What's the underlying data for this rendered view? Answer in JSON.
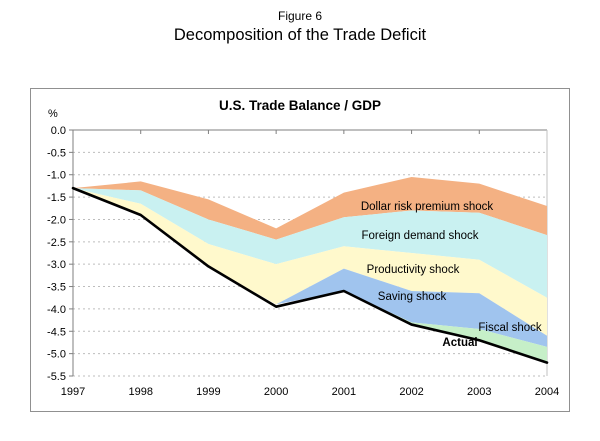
{
  "titles": {
    "figure_number": "Figure 6",
    "main_title": "Decomposition of the Trade Deficit"
  },
  "chart_data": {
    "type": "area",
    "title": "U.S. Trade Balance / GDP",
    "y_unit_label": "%",
    "x": [
      1997,
      1998,
      1999,
      2000,
      2001,
      2002,
      2003,
      2004
    ],
    "x_tick_labels": [
      "1997",
      "1998",
      "1999",
      "2000",
      "2001",
      "2002",
      "2003",
      "2004"
    ],
    "ylim": [
      -5.5,
      0.0
    ],
    "ytick_step": 0.5,
    "grid": "horizontal dashed, hidden behind areas",
    "legend": "labels drawn inside bands",
    "colors": {
      "dollar": "#F4B183",
      "foreign": "#C9F1F1",
      "productivity": "#FFF9CC",
      "saving": "#A0C4EE",
      "fiscal": "#C6EFC8",
      "actual_line": "#000000",
      "gridline": "#BDBDBD",
      "axis": "#7F7F7F",
      "frame": "#C0C0C0",
      "box_border": "#909090"
    },
    "baseline_top_boundary": [
      -1.3,
      -1.15,
      -1.55,
      -2.2,
      -1.4,
      -1.05,
      -1.2,
      -1.7
    ],
    "bands": [
      {
        "name": "Dollar risk premium shock",
        "color_key": "dollar",
        "cumulative": [
          -1.3,
          -1.35,
          -2.0,
          -2.45,
          -1.95,
          -1.8,
          -1.85,
          -2.35
        ]
      },
      {
        "name": "Foreign demand shock",
        "color_key": "foreign",
        "cumulative": [
          -1.3,
          -1.65,
          -2.55,
          -3.0,
          -2.6,
          -2.75,
          -2.9,
          -3.75
        ]
      },
      {
        "name": "Productivity shock",
        "color_key": "productivity",
        "cumulative": [
          -1.3,
          -1.9,
          -3.05,
          -3.9,
          -3.1,
          -3.6,
          -3.65,
          -4.6
        ]
      },
      {
        "name": "Saving shock",
        "color_key": "saving",
        "cumulative": [
          -1.3,
          -1.9,
          -3.05,
          -3.9,
          -3.6,
          -4.3,
          -4.45,
          -4.85
        ]
      },
      {
        "name": "Fiscal shock",
        "color_key": "fiscal",
        "cumulative": [
          -1.3,
          -1.9,
          -3.05,
          -3.9,
          -3.6,
          -4.35,
          -4.7,
          -5.2
        ]
      }
    ],
    "actual": {
      "name": "Actual",
      "values": [
        -1.3,
        -1.9,
        -3.05,
        -3.95,
        -3.6,
        -4.35,
        -4.7,
        -5.2
      ]
    }
  }
}
